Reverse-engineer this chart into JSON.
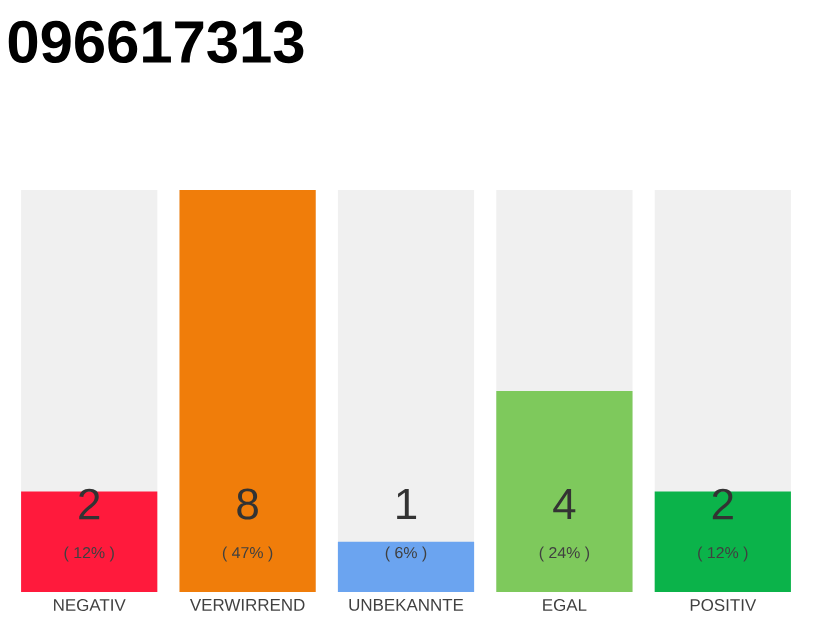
{
  "chart_data": {
    "type": "bar",
    "title": "096617313",
    "categories": [
      "NEGATIV",
      "VERWIRREND",
      "UNBEKANNTE",
      "EGAL",
      "POSITIV"
    ],
    "values": [
      2,
      8,
      1,
      4,
      2
    ],
    "colors": [
      "#ff1a3c",
      "#f07d0a",
      "#6ba4f0",
      "#7ec95c",
      "#0bb34a"
    ],
    "data_labels": true,
    "annotations": [
      "( 12% )",
      "( 47% )",
      "( 6% )",
      "( 24% )",
      "( 12% )"
    ]
  }
}
